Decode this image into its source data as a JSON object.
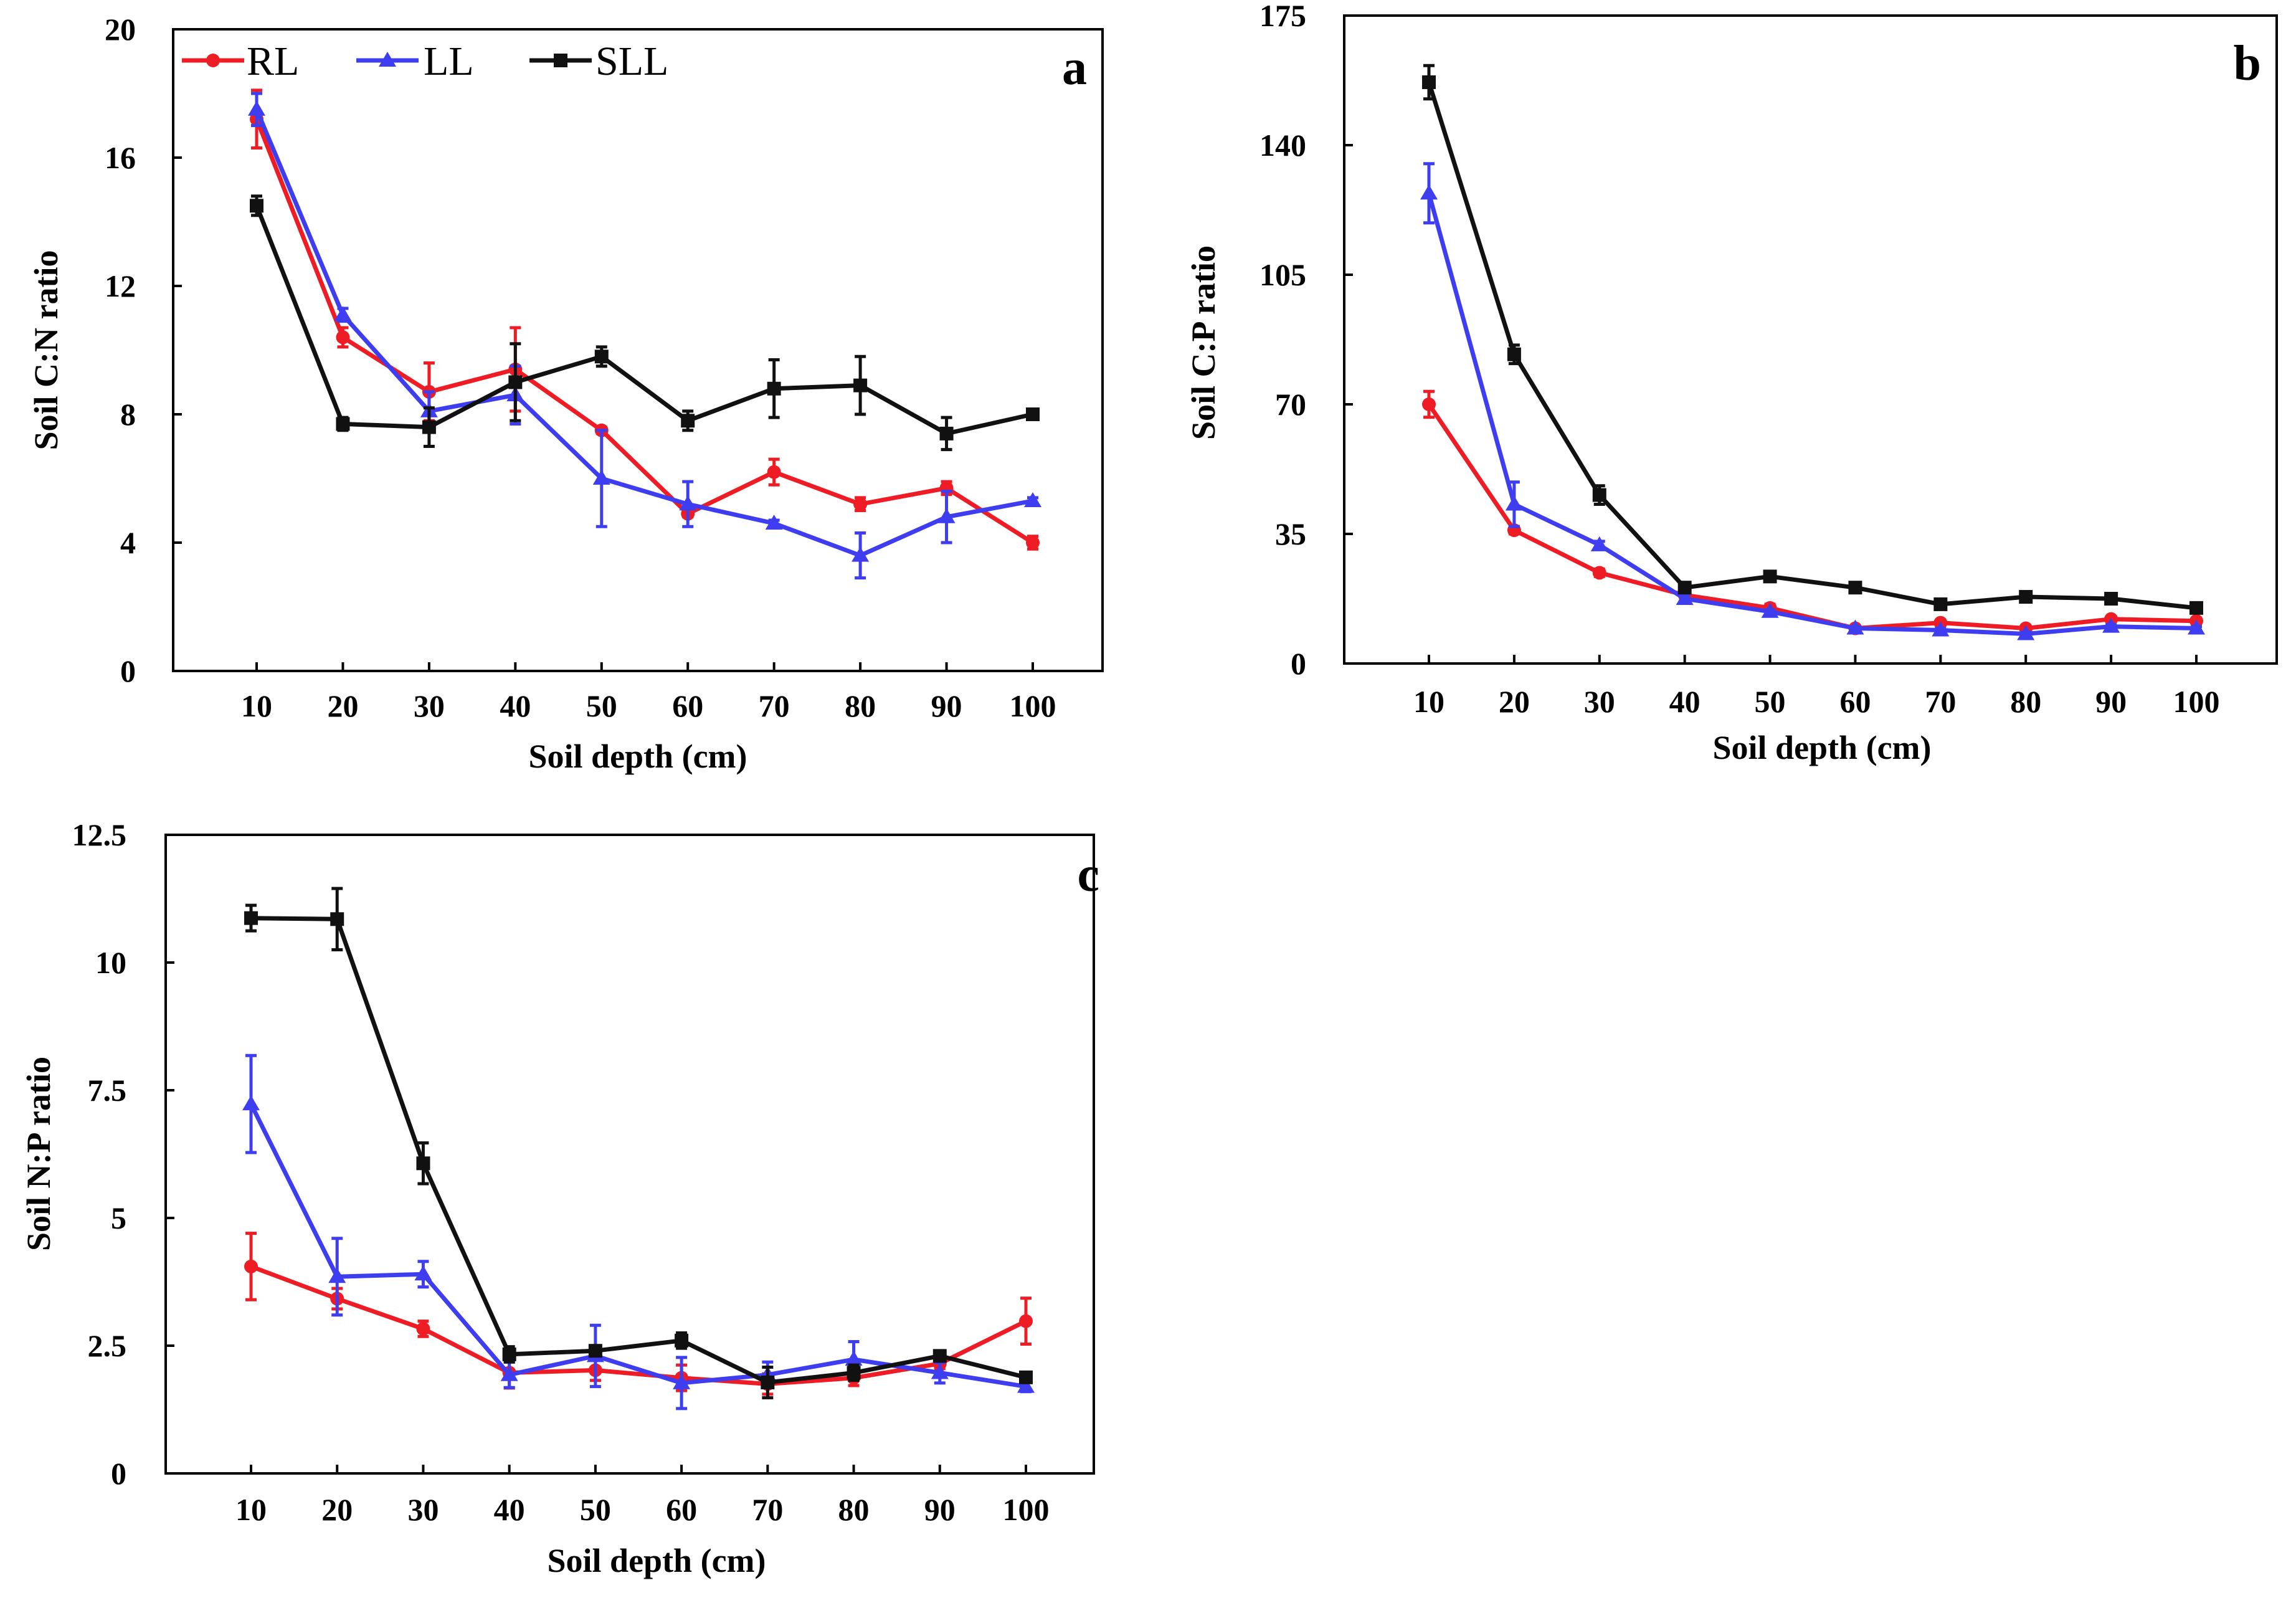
{
  "colors": {
    "RL": "#ee1c25",
    "LL": "#3e3ef0",
    "SLL": "#111111"
  },
  "legend": [
    {
      "name": "RL",
      "marker": "circle"
    },
    {
      "name": "LL",
      "marker": "triangle"
    },
    {
      "name": "SLL",
      "marker": "square"
    }
  ],
  "chart_data": [
    {
      "type": "line",
      "panel_label": "a",
      "xlabel": "Soil depth (cm)",
      "ylabel": "Soil C:N ratio",
      "categories": [
        "10",
        "20",
        "30",
        "40",
        "50",
        "60",
        "70",
        "80",
        "90",
        "100"
      ],
      "ylim": [
        0,
        20
      ],
      "yticks": [
        "0",
        "4",
        "8",
        "12",
        "16",
        "20"
      ],
      "ytick_values": [
        0,
        4,
        8,
        12,
        16,
        20
      ],
      "show_legend": true,
      "legend_position": "top-left",
      "series": [
        {
          "name": "RL",
          "values": [
            17.2,
            10.4,
            8.7,
            9.4,
            7.5,
            4.9,
            6.2,
            5.2,
            5.7,
            4.0
          ],
          "errors": [
            0.9,
            0.3,
            0.9,
            1.3,
            0.1,
            0.1,
            0.4,
            0.2,
            0.2,
            0.2
          ]
        },
        {
          "name": "LL",
          "values": [
            17.5,
            11.1,
            8.1,
            8.6,
            6.0,
            5.2,
            4.6,
            3.6,
            4.8,
            5.3
          ],
          "errors": [
            0.5,
            0.2,
            0.6,
            0.9,
            1.5,
            0.7,
            0.1,
            0.7,
            0.8,
            0.1
          ]
        },
        {
          "name": "SLL",
          "values": [
            14.5,
            7.7,
            7.6,
            9.0,
            9.8,
            7.8,
            8.8,
            8.9,
            7.4,
            8.0
          ],
          "errors": [
            0.3,
            0.2,
            0.6,
            1.2,
            0.3,
            0.3,
            0.9,
            0.9,
            0.5,
            0.1
          ]
        }
      ]
    },
    {
      "type": "line",
      "panel_label": "b",
      "xlabel": "Soil depth (cm)",
      "ylabel": "Soil C:P ratio",
      "categories": [
        "10",
        "20",
        "30",
        "40",
        "50",
        "60",
        "70",
        "80",
        "90",
        "100"
      ],
      "ylim": [
        0,
        175
      ],
      "yticks": [
        "0",
        "35",
        "70",
        "105",
        "140",
        "175"
      ],
      "ytick_values": [
        0,
        35,
        70,
        105,
        140,
        175
      ],
      "show_legend": false,
      "series": [
        {
          "name": "RL",
          "values": [
            70.0,
            36.0,
            24.5,
            18.5,
            15.0,
            9.5,
            11.0,
            9.5,
            12.0,
            11.5
          ],
          "errors": [
            3.5,
            1.0,
            1.0,
            1.0,
            1.0,
            0.5,
            0.5,
            0.5,
            0.5,
            0.5
          ]
        },
        {
          "name": "LL",
          "values": [
            127.0,
            43.0,
            32.0,
            17.5,
            14.0,
            9.5,
            9.0,
            8.0,
            10.0,
            9.5
          ],
          "errors": [
            8.0,
            6.0,
            1.0,
            1.0,
            0.5,
            0.5,
            0.5,
            0.5,
            0.5,
            0.5
          ]
        },
        {
          "name": "SLL",
          "values": [
            157.0,
            83.5,
            45.5,
            20.5,
            23.5,
            20.5,
            16.0,
            18.0,
            17.5,
            15.0
          ],
          "errors": [
            4.5,
            2.5,
            2.5,
            1.0,
            1.0,
            1.0,
            1.0,
            1.0,
            1.0,
            1.0
          ]
        }
      ]
    },
    {
      "type": "line",
      "panel_label": "c",
      "xlabel": "Soil depth (cm)",
      "ylabel": "Soil N:P ratio",
      "categories": [
        "10",
        "20",
        "30",
        "40",
        "50",
        "60",
        "70",
        "80",
        "90",
        "100"
      ],
      "ylim": [
        0,
        12.5
      ],
      "yticks": [
        "0",
        "2.5",
        "5",
        "7.5",
        "10",
        "12.5"
      ],
      "ytick_values": [
        0,
        2.5,
        5,
        7.5,
        10,
        12.5
      ],
      "show_legend": false,
      "series": [
        {
          "name": "RL",
          "values": [
            4.05,
            3.42,
            2.83,
            1.97,
            2.02,
            1.87,
            1.75,
            1.87,
            2.15,
            2.98
          ],
          "errors": [
            0.65,
            0.2,
            0.15,
            0.3,
            0.2,
            0.25,
            0.2,
            0.15,
            0.1,
            0.45
          ]
        },
        {
          "name": "LL",
          "values": [
            7.23,
            3.85,
            3.9,
            1.93,
            2.3,
            1.77,
            1.93,
            2.23,
            1.97,
            1.7
          ],
          "errors": [
            0.95,
            0.75,
            0.25,
            0.25,
            0.6,
            0.5,
            0.25,
            0.35,
            0.2,
            0.1
          ]
        },
        {
          "name": "SLL",
          "values": [
            10.87,
            10.85,
            6.07,
            2.33,
            2.4,
            2.6,
            1.78,
            1.97,
            2.3,
            1.88
          ],
          "errors": [
            0.25,
            0.6,
            0.4,
            0.15,
            0.1,
            0.15,
            0.3,
            0.15,
            0.1,
            0.05
          ]
        }
      ]
    }
  ]
}
